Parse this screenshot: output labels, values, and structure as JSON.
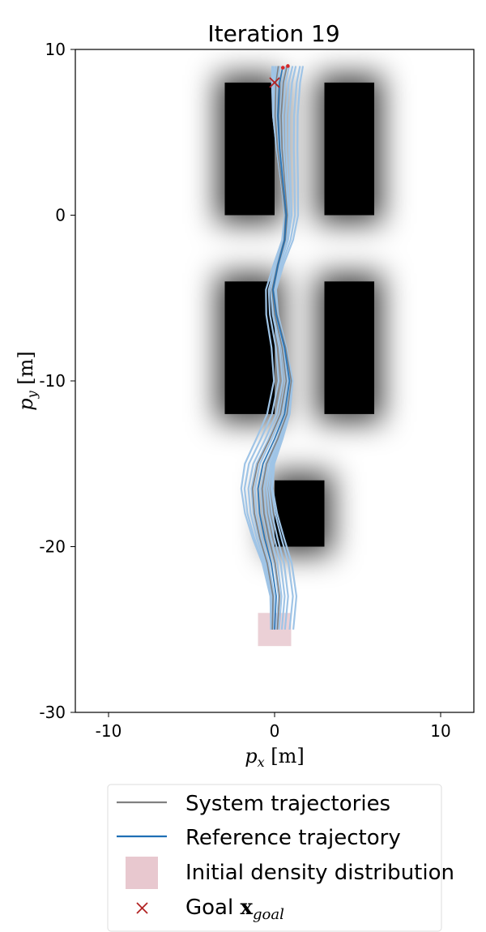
{
  "chart_data": {
    "type": "line",
    "title": "Iteration 19",
    "xlabel": "p_x [m]",
    "ylabel": "p_y [m]",
    "xlim": [
      -12,
      12
    ],
    "ylim": [
      -30,
      10
    ],
    "xticks": [
      -10,
      0,
      10
    ],
    "yticks": [
      10,
      0,
      -10,
      -20,
      -30
    ],
    "grid": false,
    "legend_position": "below",
    "obstacles": [
      {
        "x0": -3,
        "x1": 0,
        "y0": 0,
        "y1": 8
      },
      {
        "x0": 3,
        "x1": 6,
        "y0": 0,
        "y1": 8
      },
      {
        "x0": -3,
        "x1": 0,
        "y0": -12,
        "y1": -4
      },
      {
        "x0": 3,
        "x1": 6,
        "y0": -12,
        "y1": -4
      },
      {
        "x0": 0,
        "x1": 3,
        "y0": -20,
        "y1": -16
      }
    ],
    "initial_density": {
      "x0": -1,
      "x1": 1,
      "y0": -26,
      "y1": -24
    },
    "goal": {
      "x": 0,
      "y": 8
    },
    "trajectory_endpoints": [
      {
        "x": 0.5,
        "y": 8.9
      },
      {
        "x": 0.8,
        "y": 9.0
      }
    ],
    "reference_trajectory": {
      "x": [
        0,
        0.1,
        -0.2,
        -0.6,
        -0.9,
        -1.0,
        -0.7,
        0.0,
        0.6,
        0.9,
        0.6,
        0.1,
        -0.1,
        0.2,
        0.6,
        0.7,
        0.5,
        0.3,
        0.2,
        0.3,
        0.5
      ],
      "y": [
        -25,
        -23,
        -21,
        -19.5,
        -18,
        -16.5,
        -15,
        -13.5,
        -12,
        -10,
        -8,
        -6,
        -4.5,
        -3,
        -1.5,
        0,
        2,
        4,
        6,
        8,
        9
      ]
    },
    "series": [
      {
        "name": "System trajectories",
        "color": "#808080"
      },
      {
        "name": "Reference trajectory",
        "color": "#1f6fb5"
      },
      {
        "name": "Initial density distribution",
        "color": "#e8c8cf"
      },
      {
        "name": "Goal x_goal",
        "color": "#b22222"
      }
    ],
    "colors": {
      "system": "#808080",
      "reference": "#1f6fb5",
      "rollout": "#9fc4e6",
      "density": "#e8c8cf",
      "goal": "#b22222",
      "endpoint": "#d62728"
    },
    "legend": {
      "system": "System trajectories",
      "reference": "Reference trajectory",
      "density": "Initial density distribution",
      "goal_prefix": "Goal ",
      "goal_sym": "x",
      "goal_sub": "goal"
    }
  }
}
